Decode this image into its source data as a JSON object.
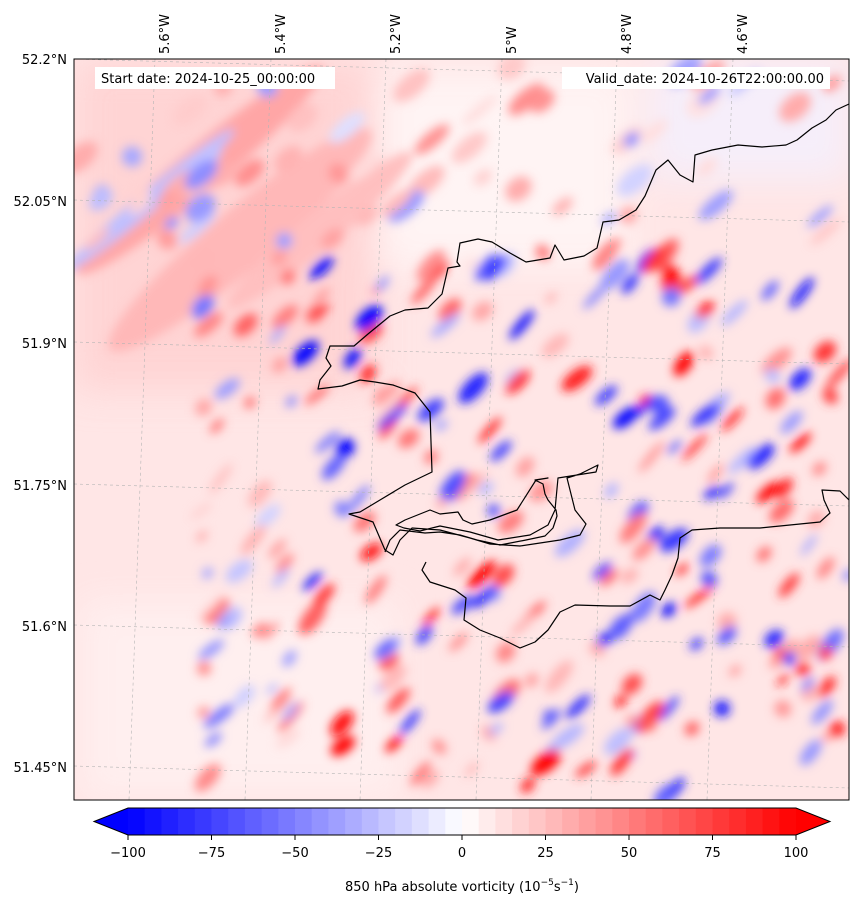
{
  "map": {
    "start_label": "Start date: 2024-10-25_00:00:00",
    "valid_label": "Valid_date: 2024-10-26T22:00:00.00",
    "lon_labels": [
      "5.6°W",
      "5.4°W",
      "5.2°W",
      "5°W",
      "4.8°W",
      "4.6°W"
    ],
    "lat_labels": [
      "52.2°N",
      "52.05°N",
      "51.9°N",
      "51.75°N",
      "51.6°N",
      "51.45°N"
    ],
    "background_color": "#ffe6e6",
    "coastline_color": "#000000",
    "gridline_color": "#b4b4b4"
  },
  "colorbar": {
    "label_prefix": "850 hPa absolute vorticity (10",
    "label_exp1": "−5",
    "label_mid": "s",
    "label_exp2": "−1",
    "label_suffix": ")",
    "tick_labels": [
      "−100",
      "−75",
      "−50",
      "−25",
      "0",
      "25",
      "50",
      "75",
      "100"
    ],
    "tick_values": [
      -100,
      -75,
      -50,
      -25,
      0,
      25,
      50,
      75,
      100
    ],
    "min": -100,
    "max": 100,
    "step": 5,
    "extend": "both",
    "cmap": "bwr",
    "negative_color": "#0000ff",
    "zero_color": "#ffffff",
    "positive_color": "#ff0000"
  }
}
